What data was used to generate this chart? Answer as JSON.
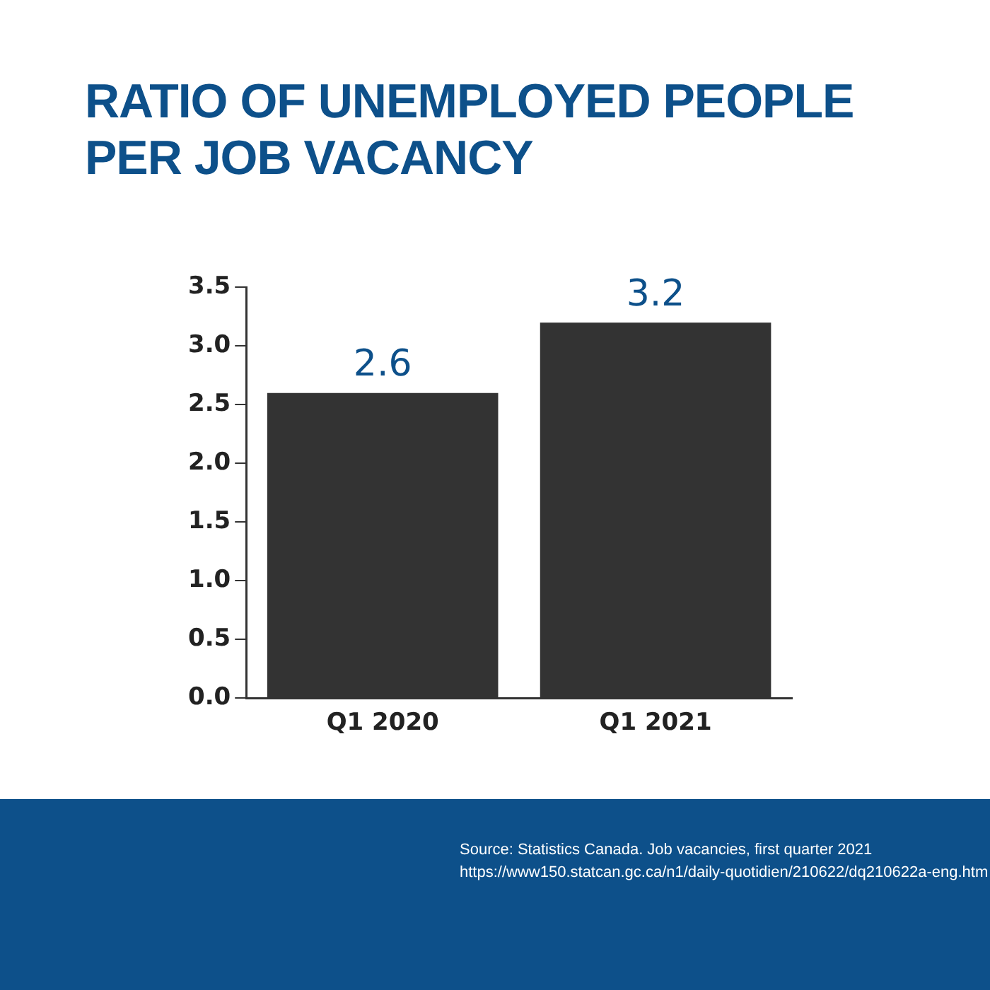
{
  "chart_data": {
    "type": "bar",
    "title": "RATIO OF UNEMPLOYED PEOPLE PER JOB VACANCY",
    "categories": [
      "Q1 2020",
      "Q1 2021"
    ],
    "values": [
      2.6,
      3.2
    ],
    "color": "#333333",
    "ylim": [
      0,
      3.5
    ],
    "yticks": [
      {
        "value": 0,
        "label": "0.0"
      },
      {
        "value": 0.5,
        "label": "0.5"
      },
      {
        "value": 1,
        "label": "1.0"
      },
      {
        "value": 1.5,
        "label": "1.5"
      },
      {
        "value": 2,
        "label": "2.0"
      },
      {
        "value": 2.5,
        "label": "2.5"
      },
      {
        "value": 3,
        "label": "3.0"
      },
      {
        "value": 3.5,
        "label": "3.5"
      }
    ],
    "grid": false,
    "legend": false,
    "data_labels": true,
    "annotations": [
      "Source: Statistics Canada. Job vacancies, first quarter 2021",
      "https://www150.statcan.gc.ca/n1/daily-quotidien/210622/dq210622a-eng.htm"
    ]
  }
}
